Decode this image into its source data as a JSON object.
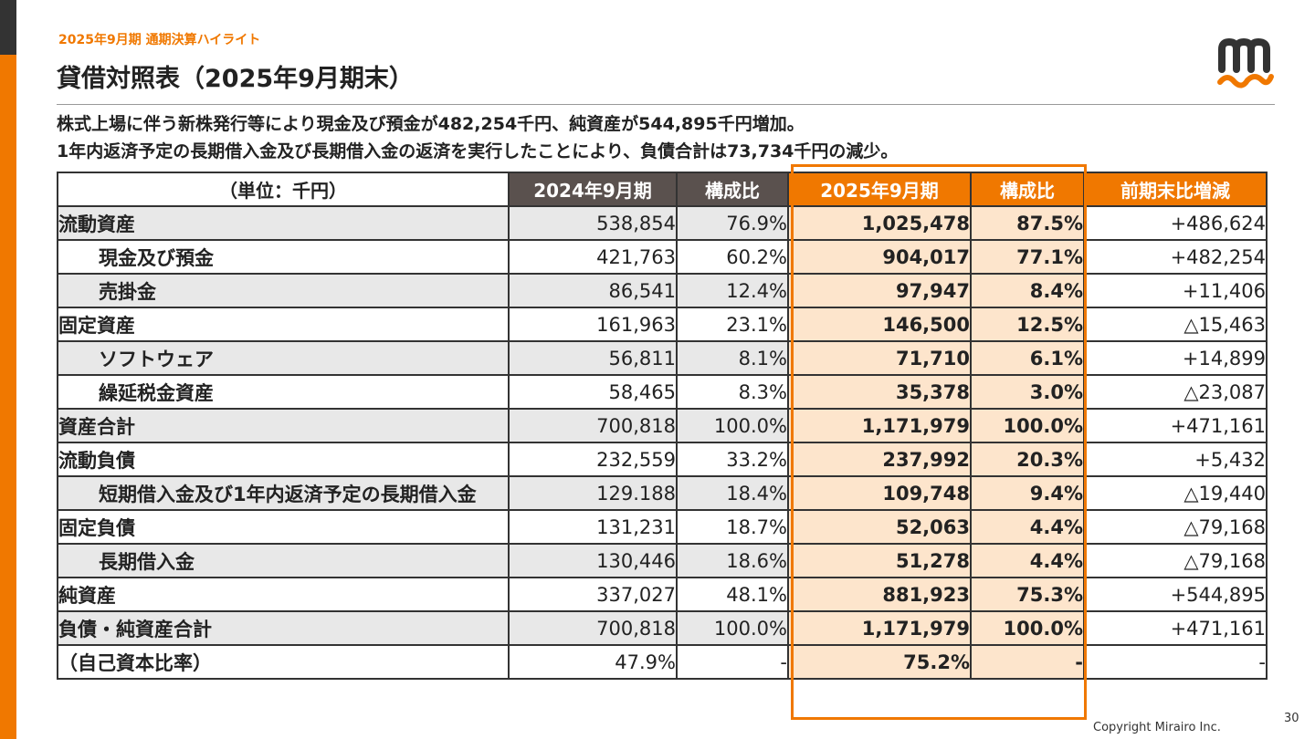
{
  "header": {
    "section_label": "2025年9月期 通期決算ハイライト",
    "title": "貸借対照表（2025年9月期末）"
  },
  "summary": {
    "line1": "株式上場に伴う新株発行等により現金及び預金が482,254千円、純資産が544,895千円増加。",
    "line2": "1年内返済予定の長期借入金及び長期借入金の返済を実行したことにより、負債合計は73,734千円の減少。"
  },
  "table": {
    "headers": [
      "（単位：千円）",
      "2024年9月期",
      "構成比",
      "2025年9月期",
      "構成比",
      "前期末比増減"
    ],
    "rows": [
      {
        "label": "流動資産",
        "indent": false,
        "prev": "538,854",
        "prev_ratio": "76.9%",
        "curr": "1,025,478",
        "curr_ratio": "87.5%",
        "diff": "+486,624"
      },
      {
        "label": "現金及び預金",
        "indent": true,
        "prev": "421,763",
        "prev_ratio": "60.2%",
        "curr": "904,017",
        "curr_ratio": "77.1%",
        "diff": "+482,254"
      },
      {
        "label": "売掛金",
        "indent": true,
        "prev": "86,541",
        "prev_ratio": "12.4%",
        "curr": "97,947",
        "curr_ratio": "8.4%",
        "diff": "+11,406"
      },
      {
        "label": "固定資産",
        "indent": false,
        "prev": "161,963",
        "prev_ratio": "23.1%",
        "curr": "146,500",
        "curr_ratio": "12.5%",
        "diff": "△15,463"
      },
      {
        "label": "ソフトウェア",
        "indent": true,
        "prev": "56,811",
        "prev_ratio": "8.1%",
        "curr": "71,710",
        "curr_ratio": "6.1%",
        "diff": "+14,899"
      },
      {
        "label": "繰延税金資産",
        "indent": true,
        "prev": "58,465",
        "prev_ratio": "8.3%",
        "curr": "35,378",
        "curr_ratio": "3.0%",
        "diff": "△23,087"
      },
      {
        "label": "資産合計",
        "indent": false,
        "prev": "700,818",
        "prev_ratio": "100.0%",
        "curr": "1,171,979",
        "curr_ratio": "100.0%",
        "diff": "+471,161"
      },
      {
        "label": "流動負債",
        "indent": false,
        "prev": "232,559",
        "prev_ratio": "33.2%",
        "curr": "237,992",
        "curr_ratio": "20.3%",
        "diff": "+5,432"
      },
      {
        "label": "短期借入金及び1年内返済予定の長期借入金",
        "indent": true,
        "prev": "129.188",
        "prev_ratio": "18.4%",
        "curr": "109,748",
        "curr_ratio": "9.4%",
        "diff": "△19,440"
      },
      {
        "label": "固定負債",
        "indent": false,
        "prev": "131,231",
        "prev_ratio": "18.7%",
        "curr": "52,063",
        "curr_ratio": "4.4%",
        "diff": "△79,168"
      },
      {
        "label": "長期借入金",
        "indent": true,
        "prev": "130,446",
        "prev_ratio": "18.6%",
        "curr": "51,278",
        "curr_ratio": "4.4%",
        "diff": "△79,168"
      },
      {
        "label": "純資産",
        "indent": false,
        "prev": "337,027",
        "prev_ratio": "48.1%",
        "curr": "881,923",
        "curr_ratio": "75.3%",
        "diff": "+544,895"
      },
      {
        "label": "負債・純資産合計",
        "indent": false,
        "prev": "700,818",
        "prev_ratio": "100.0%",
        "curr": "1,171,979",
        "curr_ratio": "100.0%",
        "diff": "+471,161"
      },
      {
        "label": "（自己資本比率）",
        "indent": false,
        "prev": "47.9%",
        "prev_ratio": "-",
        "curr": "75.2%",
        "curr_ratio": "-",
        "diff": "-"
      }
    ]
  },
  "footer": {
    "page_number": "30",
    "copyright": "Copyright Mirairo Inc."
  },
  "colors": {
    "accent": "#f07800",
    "dark_header": "#5a514e",
    "highlight_fill": "#fde5cc",
    "row_grey": "#e8e8e8"
  },
  "logo": {
    "icon": "mirairo-m-logo-icon"
  }
}
